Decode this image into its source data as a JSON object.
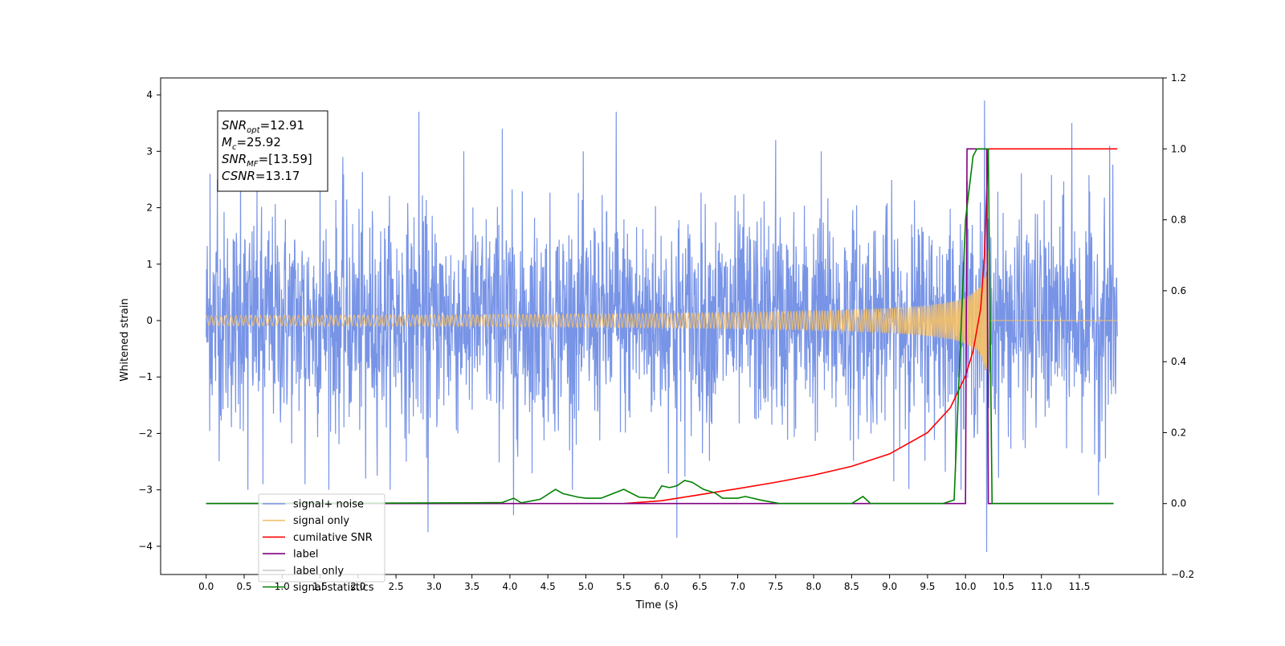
{
  "chart_data": {
    "type": "line",
    "title": "",
    "xlabel": "Time (s)",
    "ylabel": "Whitened strain",
    "y2label": "",
    "xlim": [
      -0.6,
      12.6
    ],
    "ylim": [
      -4.5,
      4.3
    ],
    "y2lim": [
      -0.2,
      1.2
    ],
    "xticks": [
      0.0,
      0.5,
      1.0,
      1.5,
      2.0,
      2.5,
      3.0,
      3.5,
      4.0,
      4.5,
      5.0,
      5.5,
      6.0,
      6.5,
      7.0,
      7.5,
      8.0,
      8.5,
      9.0,
      9.5,
      10.0,
      10.5,
      11.0,
      11.5
    ],
    "xtick_labels": [
      "0.0",
      "0.5",
      "1.0",
      "1.5",
      "2.0",
      "2.5",
      "3.0",
      "3.5",
      "4.0",
      "4.5",
      "5.0",
      "5.5",
      "6.0",
      "6.5",
      "7.0",
      "7.5",
      "8.0",
      "8.5",
      "9.0",
      "9.5",
      "10.0",
      "10.5",
      "11.0",
      "11.5"
    ],
    "yticks": [
      -4,
      -3,
      -2,
      -1,
      0,
      1,
      2,
      3,
      4
    ],
    "ytick_labels": [
      "−4",
      "−3",
      "−2",
      "−1",
      "0",
      "1",
      "2",
      "3",
      "4"
    ],
    "y2ticks": [
      -0.2,
      0.0,
      0.2,
      0.4,
      0.6,
      0.8,
      1.0,
      1.2
    ],
    "y2tick_labels": [
      "−0.2",
      "0.0",
      "0.2",
      "0.4",
      "0.6",
      "0.8",
      "1.0",
      "1.2"
    ],
    "grid": false,
    "legend_position": "lower-left",
    "annotation": {
      "lines": [
        {
          "sym": "SNR",
          "sub": "opt",
          "val": "=12.91"
        },
        {
          "sym": "M",
          "sub": "c",
          "val": "=25.92"
        },
        {
          "sym": "SNR",
          "sub": "MF",
          "val": "=[13.59]"
        },
        {
          "sym": "CSNR",
          "sub": "",
          "val": "=13.17"
        }
      ]
    },
    "series": [
      {
        "name": "signal+ noise",
        "color": "#7894e6",
        "axis": "left",
        "kind": "noise",
        "x_range": [
          0.0,
          12.0
        ],
        "typical_amplitude": 1.5,
        "peaks": [
          {
            "x": 0.05,
            "y": 2.6
          },
          {
            "x": 0.15,
            "y": 2.5
          },
          {
            "x": 0.45,
            "y": 2.85
          },
          {
            "x": 0.55,
            "y": -3.0
          },
          {
            "x": 0.75,
            "y": -2.9
          },
          {
            "x": 1.3,
            "y": -2.9
          },
          {
            "x": 1.5,
            "y": 2.9
          },
          {
            "x": 1.8,
            "y": 2.9
          },
          {
            "x": 2.1,
            "y": -2.8
          },
          {
            "x": 2.8,
            "y": 3.7
          },
          {
            "x": 2.92,
            "y": -3.75
          },
          {
            "x": 3.9,
            "y": 3.4
          },
          {
            "x": 4.05,
            "y": -3.45
          },
          {
            "x": 5.4,
            "y": 3.7
          },
          {
            "x": 6.2,
            "y": -3.85
          },
          {
            "x": 7.5,
            "y": 3.2
          },
          {
            "x": 8.1,
            "y": 3.0
          },
          {
            "x": 10.25,
            "y": 3.9
          },
          {
            "x": 10.28,
            "y": -4.1
          },
          {
            "x": 11.4,
            "y": 3.5
          },
          {
            "x": 11.75,
            "y": -3.1
          },
          {
            "x": 11.9,
            "y": 3.1
          }
        ]
      },
      {
        "name": "signal only",
        "color": "#f5c067",
        "axis": "left",
        "kind": "chirp",
        "x_range": [
          0.0,
          12.0
        ],
        "merger_time": 10.3,
        "peak_amplitude": 1.45
      },
      {
        "name": "cumilative SNR",
        "color": "#ff0000",
        "axis": "right",
        "x": [
          5.5,
          6.0,
          6.5,
          7.0,
          7.5,
          8.0,
          8.5,
          9.0,
          9.5,
          9.8,
          10.0,
          10.1,
          10.2,
          10.25,
          10.3,
          12.0
        ],
        "y": [
          0.0,
          0.008,
          0.025,
          0.042,
          0.06,
          0.08,
          0.105,
          0.14,
          0.2,
          0.27,
          0.36,
          0.43,
          0.55,
          0.7,
          1.0,
          1.0
        ]
      },
      {
        "name": "label",
        "color": "#800080",
        "axis": "right",
        "x": [
          0.0,
          10.0,
          10.02,
          10.28,
          10.3,
          11.95
        ],
        "y": [
          0.0,
          0.0,
          1.0,
          1.0,
          0.0,
          0.0
        ]
      },
      {
        "name": "label only",
        "color": "#cccccc",
        "axis": "right",
        "legend_only": true,
        "x": [],
        "y": []
      },
      {
        "name": "signal statistics",
        "color": "#008000",
        "axis": "right",
        "x": [
          0.0,
          3.5,
          3.9,
          4.05,
          4.15,
          4.4,
          4.6,
          4.7,
          4.9,
          5.0,
          5.2,
          5.5,
          5.7,
          5.9,
          6.0,
          6.1,
          6.2,
          6.3,
          6.4,
          6.55,
          6.7,
          6.8,
          7.0,
          7.1,
          7.3,
          7.55,
          7.6,
          8.5,
          8.65,
          8.75,
          8.85,
          9.7,
          9.85,
          10.0,
          10.1,
          10.15,
          10.2,
          10.25,
          10.3,
          10.35,
          11.95
        ],
        "y": [
          0.0,
          0.002,
          0.003,
          0.015,
          0.002,
          0.012,
          0.04,
          0.028,
          0.018,
          0.015,
          0.015,
          0.04,
          0.018,
          0.015,
          0.05,
          0.045,
          0.05,
          0.065,
          0.06,
          0.04,
          0.03,
          0.015,
          0.015,
          0.02,
          0.01,
          0.0,
          0.0,
          0.0,
          0.02,
          0.0,
          0.0,
          0.0,
          0.01,
          0.8,
          0.98,
          1.0,
          1.0,
          1.0,
          1.0,
          0.0,
          0.0
        ]
      }
    ]
  }
}
